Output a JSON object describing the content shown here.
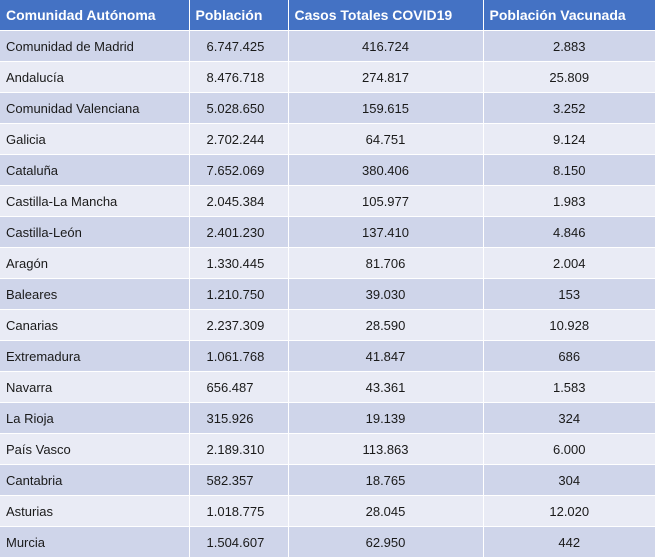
{
  "table": {
    "headers": [
      "Comunidad Autónoma",
      "Población",
      "Casos Totales COVID19",
      "Población Vacunada"
    ],
    "rows": [
      [
        "Comunidad de Madrid",
        "6.747.425",
        "416.724",
        "2.883"
      ],
      [
        "Andalucía",
        "8.476.718",
        "274.817",
        "25.809"
      ],
      [
        "Comunidad Valenciana",
        "5.028.650",
        "159.615",
        "3.252"
      ],
      [
        "Galicia",
        "2.702.244",
        "64.751",
        "9.124"
      ],
      [
        "Cataluña",
        "7.652.069",
        "380.406",
        "8.150"
      ],
      [
        "Castilla-La Mancha",
        "2.045.384",
        "105.977",
        "1.983"
      ],
      [
        "Castilla-León",
        "2.401.230",
        "137.410",
        "4.846"
      ],
      [
        "Aragón",
        "1.330.445",
        "81.706",
        "2.004"
      ],
      [
        "Baleares",
        "1.210.750",
        "39.030",
        "153"
      ],
      [
        "Canarias",
        "2.237.309",
        "28.590",
        "10.928"
      ],
      [
        "Extremadura",
        "1.061.768",
        "41.847",
        "686"
      ],
      [
        "Navarra",
        "656.487",
        "43.361",
        "1.583"
      ],
      [
        "La Rioja",
        "315.926",
        "19.139",
        "324"
      ],
      [
        "País Vasco",
        "2.189.310",
        "113.863",
        "6.000"
      ],
      [
        "Cantabria",
        "582.357",
        "18.765",
        "304"
      ],
      [
        "Asturias",
        "1.018.775",
        "28.045",
        "12.020"
      ],
      [
        "Murcia",
        "1.504.607",
        "62.950",
        "442"
      ]
    ]
  },
  "colors": {
    "header_bg": "#4472c4",
    "row_odd_bg": "#cfd5ea",
    "row_even_bg": "#e9ebf5"
  }
}
